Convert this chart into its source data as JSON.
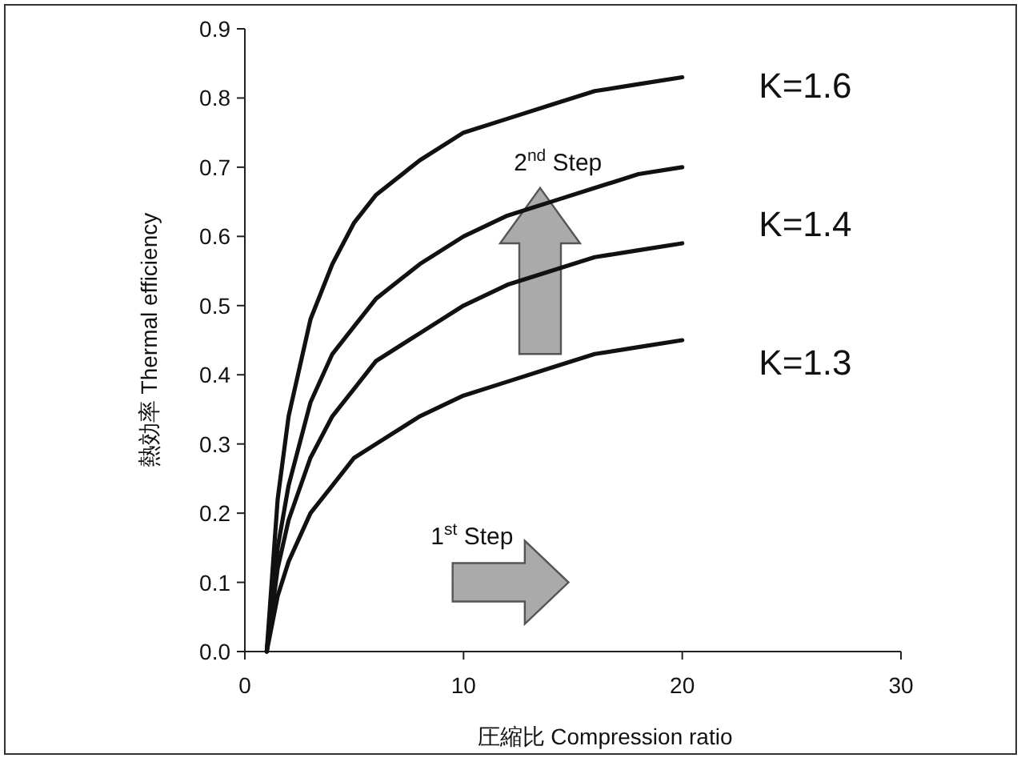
{
  "chart_data": {
    "type": "line",
    "xlabel": "圧縮比  Compression ratio",
    "ylabel": "熱効率  Thermal efficiency",
    "x": [
      1,
      1.5,
      2,
      3,
      4,
      5,
      6,
      8,
      10,
      12,
      14,
      16,
      18,
      20
    ],
    "series": [
      {
        "color": "#111111",
        "values": [
          0,
          0.22,
          0.34,
          0.48,
          0.56,
          0.62,
          0.66,
          0.71,
          0.75,
          0.77,
          0.79,
          0.81,
          0.82,
          0.83
        ]
      },
      {
        "color": "#111111",
        "values": [
          0,
          0.15,
          0.24,
          0.36,
          0.43,
          0.47,
          0.51,
          0.56,
          0.6,
          0.63,
          0.65,
          0.67,
          0.69,
          0.7
        ]
      },
      {
        "color": "#111111",
        "values": [
          0,
          0.12,
          0.19,
          0.28,
          0.34,
          0.38,
          0.42,
          0.46,
          0.5,
          0.53,
          0.55,
          0.57,
          0.58,
          0.59
        ]
      },
      {
        "color": "#111111",
        "values": [
          0,
          0.08,
          0.13,
          0.2,
          0.24,
          0.28,
          0.3,
          0.34,
          0.37,
          0.39,
          0.41,
          0.43,
          0.44,
          0.45
        ]
      }
    ],
    "xlim": [
      0,
      30
    ],
    "xticks": [
      0,
      10,
      20,
      30
    ],
    "ylim": [
      0,
      0.9
    ],
    "yticks": [
      {
        "value": 0,
        "label": "0.0"
      },
      0.1,
      0.2,
      0.3,
      0.4,
      0.5,
      0.6,
      0.7,
      0.8,
      0.9
    ],
    "grid": false,
    "marker": "none",
    "line_style": "solid",
    "annotations": [
      "K=1.6",
      "K=1.4",
      "K=1.3",
      "2$^{nd}$ Step",
      "1$^{st}$ Step"
    ]
  }
}
